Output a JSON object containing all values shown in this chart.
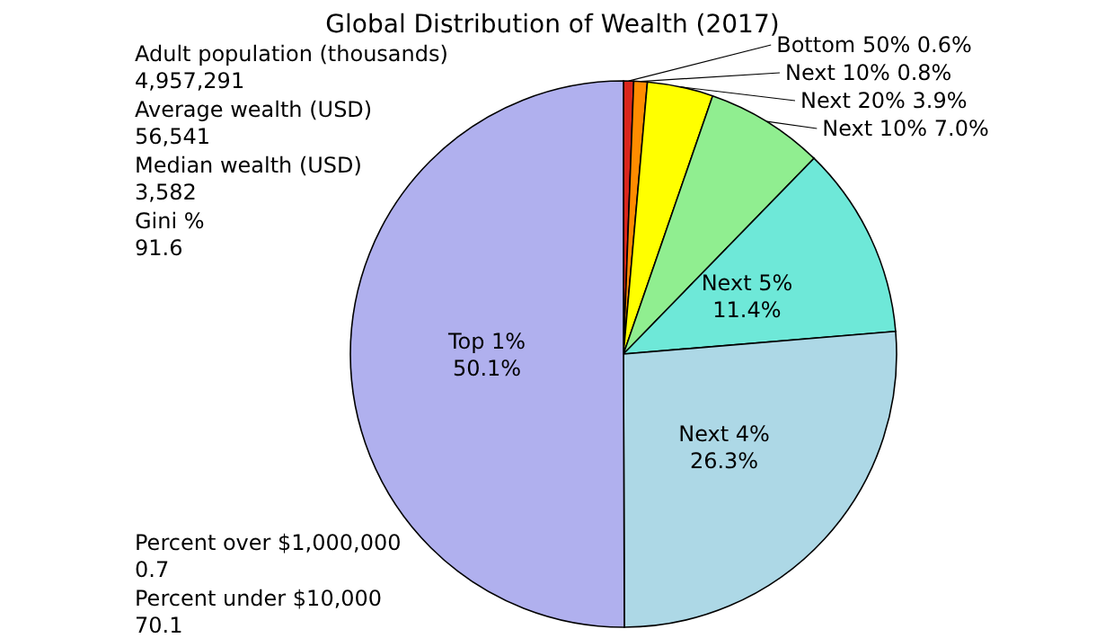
{
  "chart_data": {
    "type": "pie",
    "title": "Global Distribution of Wealth (2017)",
    "categories": [
      "Bottom 50%",
      "Next 10%",
      "Next 20%",
      "Next 10%",
      "Next 5%",
      "Next 4%",
      "Top 1%"
    ],
    "values": [
      0.6,
      0.8,
      3.9,
      7.0,
      11.4,
      26.3,
      50.1
    ],
    "value_labels": [
      "0.6%",
      "0.8%",
      "3.9%",
      "7.0%",
      "11.4%",
      "26.3%",
      "50.1%"
    ],
    "colors": [
      "#d9261c",
      "#ff8c00",
      "#ffff00",
      "#90ee90",
      "#6ee8d8",
      "#add8e6",
      "#b0b0ee"
    ],
    "legend": false,
    "annotations": [
      "Adult population (thousands)\n4,957,291",
      "Average wealth (USD)\n56,541",
      "Median wealth (USD)\n3,582",
      "Gini %\n91.6",
      "Percent over $1,000,000\n0.7",
      "Percent under $10,000\n70.1"
    ]
  }
}
